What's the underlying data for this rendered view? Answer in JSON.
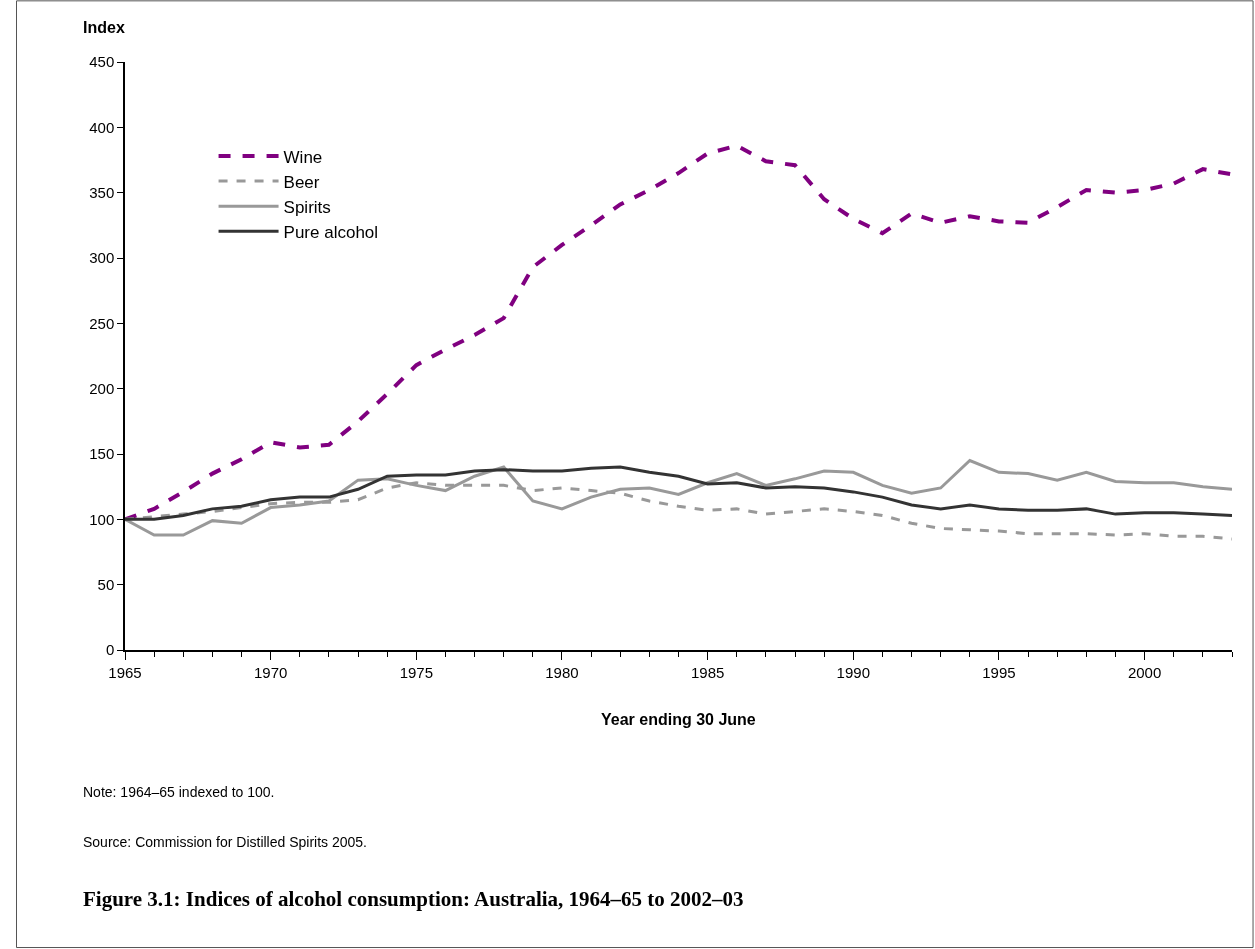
{
  "chart_data": {
    "type": "line",
    "title": "Figure 3.1: Indices of alcohol consumption: Australia, 1964–65 to 2002–03",
    "xlabel": "Year ending 30 June",
    "ylabel": "Index",
    "annotations": [
      "Note: 1964–65 indexed to 100.",
      "Source: Commission for Distilled Spirits 2005."
    ],
    "x": [
      1965,
      1966,
      1967,
      1968,
      1969,
      1970,
      1971,
      1972,
      1973,
      1974,
      1975,
      1976,
      1977,
      1978,
      1979,
      1980,
      1981,
      1982,
      1983,
      1984,
      1985,
      1986,
      1987,
      1988,
      1989,
      1990,
      1991,
      1992,
      1993,
      1994,
      1995,
      1996,
      1997,
      1998,
      1999,
      2000,
      2001,
      2002,
      2003
    ],
    "series": [
      {
        "name": "Wine",
        "color": "#800080",
        "line_style": "dashed",
        "values": [
          100,
          108,
          121,
          135,
          146,
          159,
          155,
          157,
          175,
          196,
          218,
          230,
          241,
          254,
          293,
          310,
          325,
          341,
          352,
          365,
          380,
          386,
          374,
          371,
          345,
          330,
          319,
          334,
          327,
          332,
          328,
          327,
          339,
          352,
          350,
          352,
          357,
          368,
          364
        ]
      },
      {
        "name": "Beer",
        "color": "#999999",
        "line_style": "dashed",
        "values": [
          100,
          102,
          104,
          106,
          109,
          112,
          113,
          113,
          115,
          124,
          128,
          126,
          126,
          126,
          122,
          124,
          122,
          120,
          114,
          110,
          107,
          108,
          104,
          106,
          108,
          106,
          103,
          97,
          93,
          92,
          91,
          89,
          89,
          89,
          88,
          89,
          87,
          87,
          85
        ]
      },
      {
        "name": "Spirits",
        "color": "#999999",
        "line_style": "solid",
        "values": [
          100,
          88,
          88,
          99,
          97,
          109,
          111,
          114,
          130,
          131,
          126,
          122,
          133,
          140,
          114,
          108,
          117,
          123,
          124,
          119,
          128,
          135,
          126,
          131,
          137,
          136,
          126,
          120,
          124,
          145,
          136,
          135,
          130,
          136,
          129,
          128,
          128,
          125,
          123
        ]
      },
      {
        "name": "Pure alcohol",
        "color": "#333333",
        "line_style": "solid",
        "values": [
          100,
          100,
          103,
          108,
          110,
          115,
          117,
          117,
          123,
          133,
          134,
          134,
          137,
          138,
          137,
          137,
          139,
          140,
          136,
          133,
          127,
          128,
          124,
          125,
          124,
          121,
          117,
          111,
          108,
          111,
          108,
          107,
          107,
          108,
          104,
          105,
          105,
          104,
          103
        ]
      }
    ],
    "xlim": [
      1965,
      2003
    ],
    "xticks": [
      1965,
      1970,
      1975,
      1980,
      1985,
      1990,
      1995,
      2000
    ],
    "ylim": [
      0,
      450
    ],
    "yticks": [
      0,
      50,
      100,
      150,
      200,
      250,
      300,
      350,
      400,
      450
    ],
    "legend": "top left",
    "marker": "none"
  }
}
